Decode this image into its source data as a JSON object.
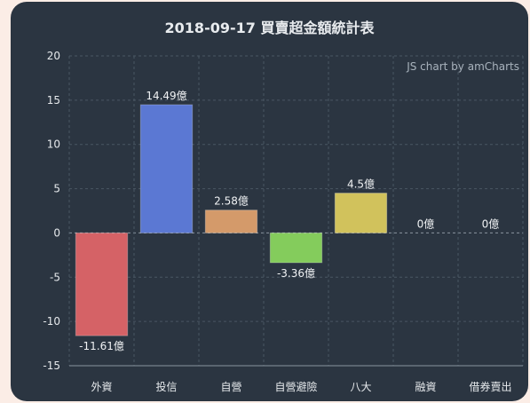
{
  "chart_data": {
    "type": "bar",
    "title": "2018-09-17 買賣超金額統計表",
    "credit": "JS chart by amCharts",
    "categories": [
      "外資",
      "投信",
      "自營",
      "自營避險",
      "八大",
      "融資",
      "借券賣出"
    ],
    "values": [
      -11.61,
      14.49,
      2.58,
      -3.36,
      4.5,
      0,
      0
    ],
    "data_labels": [
      "-11.61億",
      "14.49億",
      "2.58億",
      "-3.36億",
      "4.5億",
      "0億",
      "0億"
    ],
    "colors": [
      "#d56266",
      "#5b78d3",
      "#d49a6a",
      "#84cc5c",
      "#d1c25c",
      "#d76ba7",
      "#a46bd5"
    ],
    "ylim": [
      -15,
      20
    ],
    "yticks": [
      20,
      15,
      10,
      5,
      0,
      -5,
      -10,
      -15
    ],
    "grid": true,
    "xlabel": "",
    "ylabel": ""
  },
  "theme": {
    "background": "#2b3541",
    "grid_color": "#4a5663",
    "zero_line_color": "#8a95a0",
    "text_color": "#e6e9ec"
  }
}
